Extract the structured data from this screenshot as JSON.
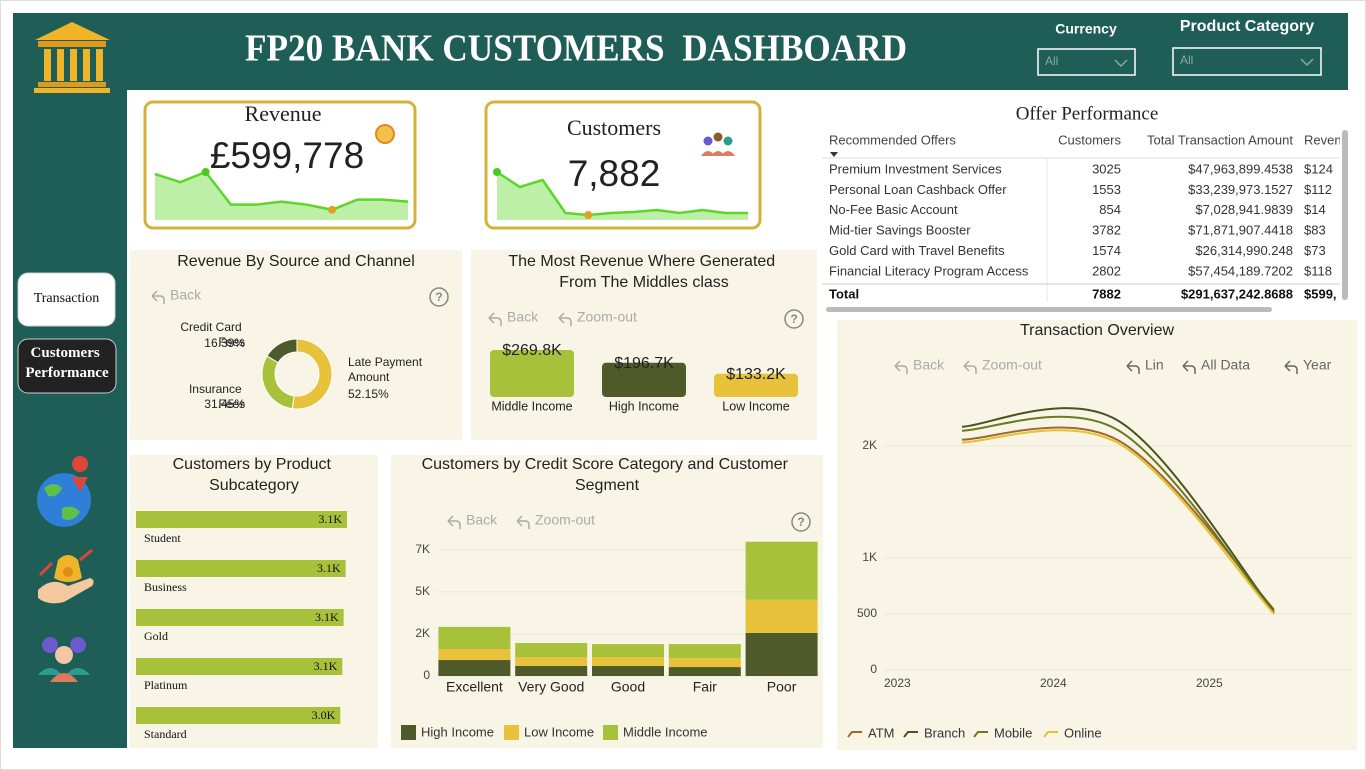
{
  "header": {
    "title": "FP20 BANK CUSTOMERS  DASHBOARD"
  },
  "filters": [
    {
      "label": "Currency",
      "value": "All"
    },
    {
      "label": "Product Category",
      "value": "All"
    }
  ],
  "nav": [
    "Transaction",
    "Customers Performance"
  ],
  "kpis": [
    {
      "title": "Revenue",
      "value": "£599,778",
      "trend": [
        45,
        37,
        47,
        15,
        15,
        18,
        15,
        10,
        20,
        20,
        18
      ]
    },
    {
      "title": "Customers",
      "value": "7,882",
      "trend": [
        48,
        33,
        40,
        7,
        5,
        7,
        8,
        10,
        7,
        10,
        7,
        7
      ]
    }
  ],
  "offer_table": {
    "title": "Offer Performance",
    "columns": [
      "Recommended Offers",
      "Customers",
      "Total Transaction Amount",
      "Reven"
    ],
    "rows": [
      [
        "Premium Investment Services",
        3025,
        "$47,963,899.4538",
        "$124"
      ],
      [
        "Personal Loan Cashback Offer",
        1553,
        "$33,239,973.1527",
        "$112"
      ],
      [
        "No-Fee Basic Account",
        854,
        "$7,028,941.9839",
        "$14"
      ],
      [
        "Mid-tier Savings Booster",
        3782,
        "$71,871,907.4418",
        "$83"
      ],
      [
        "Gold Card with Travel Benefits",
        1574,
        "$26,314,990.248",
        "$73"
      ],
      [
        "Financial Literacy Program Access",
        2802,
        "$57,454,189.7202",
        "$118"
      ]
    ],
    "total": [
      "Total",
      7882,
      "$291,637,242.8688",
      "$599,"
    ]
  },
  "chart_data": [
    {
      "type": "donut",
      "title": "Revenue By Source and Channel",
      "toolbar": [
        "Back"
      ],
      "help": "?",
      "categories": [
        "Late Payment Amount",
        "Insurance Fees",
        "Credit Card Fees"
      ],
      "values": [
        52.15,
        31.45,
        16.39
      ],
      "value_labels": [
        "52.15%",
        "31.45%",
        "16.39%"
      ],
      "colors": [
        "#e8c23a",
        "#a8c13a",
        "#4f5a2a"
      ]
    },
    {
      "type": "bar",
      "title": "The Most Revenue Where Generated From The Middles class",
      "toolbar": [
        "Back",
        "Zoom-out"
      ],
      "help": "?",
      "categories": [
        "Middle Income",
        "High Income",
        "Low Income"
      ],
      "values": [
        269800,
        196700,
        133200
      ],
      "value_labels": [
        "$269.8K",
        "$196.7K",
        "$133.2K"
      ],
      "colors": [
        "#a8c13a",
        "#4f5a2a",
        "#e8c23a"
      ]
    },
    {
      "type": "hbar",
      "title": "Customers by Product Subcategory",
      "categories": [
        "Student",
        "Business",
        "Gold",
        "Platinum",
        "Standard"
      ],
      "values": [
        3140,
        3120,
        3090,
        3070,
        3040
      ],
      "value_labels": [
        "3.1K",
        "3.1K",
        "3.1K",
        "3.1K",
        "3.0K"
      ],
      "color": "#a8c13a"
    },
    {
      "type": "stacked_bar",
      "title": "Customers by Credit Score Category and Customer Segment",
      "toolbar": [
        "Back",
        "Zoom-out"
      ],
      "help": "?",
      "categories": [
        "Excellent",
        "Very Good",
        "Good",
        "Fair",
        "Poor"
      ],
      "series": [
        {
          "name": "High Income",
          "color": "#4f5a2a",
          "values": [
            910,
            570,
            570,
            510,
            2460
          ]
        },
        {
          "name": "Low Income",
          "color": "#e8c23a",
          "values": [
            630,
            510,
            510,
            510,
            1890
          ]
        },
        {
          "name": "Middle Income",
          "color": "#a8c13a",
          "values": [
            1260,
            800,
            740,
            800,
            3310
          ]
        }
      ],
      "ylim": [
        0,
        7700
      ],
      "yticks": [
        0,
        {
          "value": 2400,
          "label": "2K"
        },
        {
          "value": 4800,
          "label": "5K"
        },
        {
          "value": 7200,
          "label": "7K"
        }
      ],
      "grid": true,
      "legend": "bottom-left"
    },
    {
      "type": "line",
      "title": "Transaction Overview",
      "toolbar": [
        "Back",
        "Zoom-out",
        "Lin",
        "All Data",
        "Year"
      ],
      "categories": [
        "2023",
        "2024",
        "2025"
      ],
      "series": [
        {
          "name": "ATM",
          "color": "#a0682b",
          "values": [
            2055,
            2050,
            540
          ]
        },
        {
          "name": "Branch",
          "color": "#4b5320",
          "values": [
            2170,
            2225,
            520
          ]
        },
        {
          "name": "Mobile",
          "color": "#6b7a1f",
          "values": [
            2135,
            2140,
            510
          ]
        },
        {
          "name": "Online",
          "color": "#e8c030",
          "values": [
            2030,
            2025,
            500
          ]
        }
      ],
      "ylim": [
        0,
        2400
      ],
      "yticks": [
        0,
        500,
        {
          "value": 1000,
          "label": "1K"
        },
        {
          "value": 2000,
          "label": "2K"
        }
      ],
      "grid": true,
      "legend": "bottom-left"
    }
  ]
}
